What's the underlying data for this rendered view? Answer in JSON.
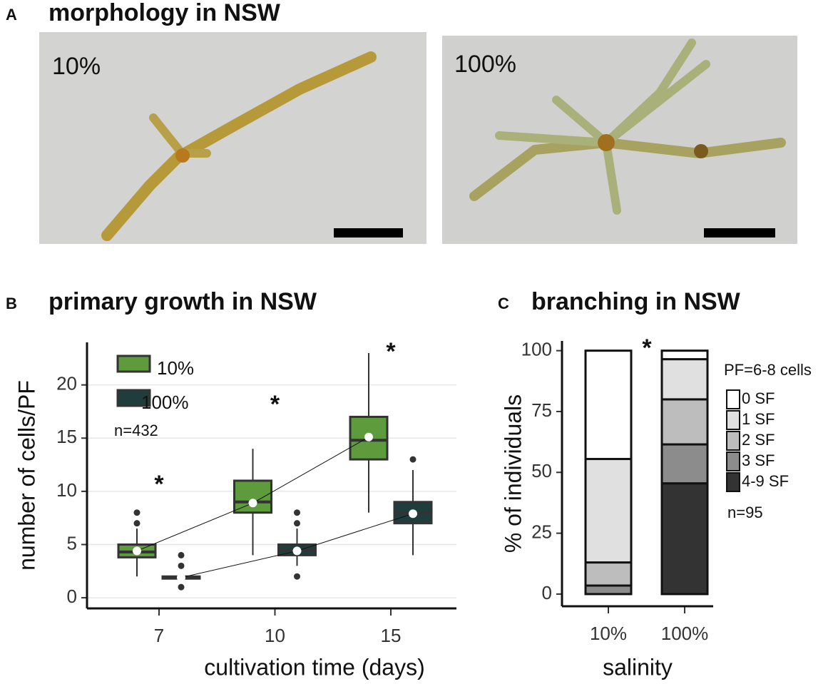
{
  "panel_a": {
    "label": "A",
    "title": "morphology in NSW",
    "images": [
      {
        "label": "10%"
      },
      {
        "label": "100%"
      }
    ]
  },
  "chart_data": [
    {
      "panel_label": "B",
      "type": "box",
      "title": "primary growth in NSW",
      "x_label": "cultivation time (days)",
      "y_label": "number of cells/PF",
      "categories": [
        "7",
        "10",
        "15"
      ],
      "ylim": [
        -1,
        24
      ],
      "yticks": [
        0,
        5,
        10,
        15,
        20
      ],
      "grid": true,
      "legend": "top-left",
      "significance": [
        "*",
        "*",
        "*"
      ],
      "note": "n=432",
      "series": [
        {
          "name": "10%",
          "color": "#5e9b3c",
          "min": [
            2,
            4,
            8
          ],
          "q1": [
            3.8,
            8,
            13
          ],
          "median": [
            4.3,
            9,
            14.8
          ],
          "q3": [
            5,
            11,
            17
          ],
          "max": [
            6.5,
            14,
            23
          ],
          "mean": [
            4.4,
            8.9,
            15.1
          ],
          "outliers": [
            [
              7,
              8
            ],
            [],
            []
          ]
        },
        {
          "name": "100%",
          "color": "#1f3d3d",
          "min": [
            1.8,
            3,
            4
          ],
          "q1": [
            1.8,
            4,
            7
          ],
          "median": [
            1.9,
            4.5,
            8
          ],
          "q3": [
            2,
            5,
            9
          ],
          "max": [
            2,
            6.5,
            12
          ],
          "mean": [
            1.9,
            4.4,
            7.9
          ],
          "outliers": [
            [
              1,
              3,
              4
            ],
            [
              2,
              7,
              8
            ],
            [
              13
            ]
          ]
        }
      ]
    },
    {
      "panel_label": "C",
      "type": "stacked_bar",
      "title": "branching in NSW",
      "x_label": "salinity",
      "y_label": "% of individuals",
      "categories": [
        "10%",
        "100%"
      ],
      "ylim": [
        -5,
        104
      ],
      "yticks": [
        0,
        25,
        50,
        75,
        100
      ],
      "grid": false,
      "legend": "right",
      "significance": "*",
      "legend_title": "PF=6-8 cells",
      "note": "n=95",
      "series": [
        {
          "name": "0 SF",
          "color": "#ffffff",
          "values": [
            44.5,
            3.5
          ]
        },
        {
          "name": "1 SF",
          "color": "#e0e0e0",
          "values": [
            42.5,
            16.5
          ]
        },
        {
          "name": "2 SF",
          "color": "#bdbdbd",
          "values": [
            9.5,
            18.5
          ]
        },
        {
          "name": "3 SF",
          "color": "#8c8c8c",
          "values": [
            3.5,
            16
          ]
        },
        {
          "name": "4-9 SF",
          "color": "#333333",
          "values": [
            0,
            45.5
          ]
        }
      ]
    }
  ]
}
